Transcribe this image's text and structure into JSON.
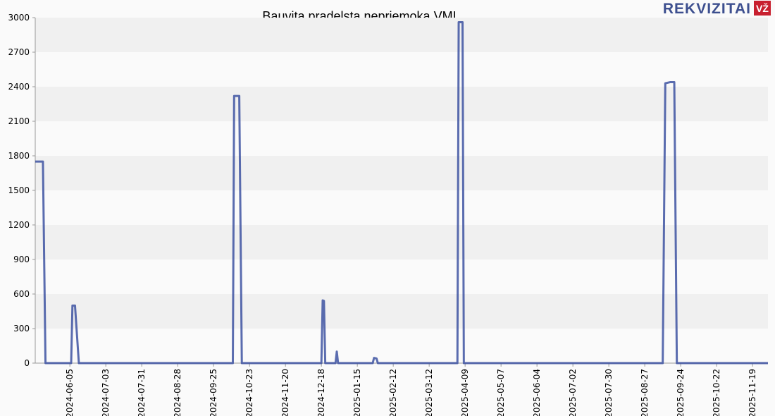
{
  "brand": {
    "name": "REKVIZITAI",
    "badge": "VŽ"
  },
  "chart_data": {
    "type": "line",
    "title": "Bauvita pradelsta nepriemoka VMI",
    "x": [
      "2024-05-09",
      "2024-05-15",
      "2024-05-17",
      "2024-06-06",
      "2024-06-07",
      "2024-06-09",
      "2024-06-12",
      "2024-10-10",
      "2024-10-11",
      "2024-10-15",
      "2024-10-17",
      "2024-12-18",
      "2024-12-19",
      "2024-12-20",
      "2024-12-21",
      "2024-12-29",
      "2024-12-30",
      "2024-12-31",
      "2025-01-27",
      "2025-01-28",
      "2025-01-30",
      "2025-01-31",
      "2025-04-03",
      "2025-04-04",
      "2025-04-07",
      "2025-04-08",
      "2025-09-10",
      "2025-09-12",
      "2025-09-16",
      "2025-09-19",
      "2025-09-21",
      "2025-12-01"
    ],
    "series": [
      {
        "name": "Bauvita",
        "color": "#3d52a1",
        "values": [
          1750,
          1750,
          0,
          0,
          500,
          500,
          0,
          0,
          2320,
          2320,
          0,
          0,
          545,
          540,
          0,
          0,
          100,
          0,
          0,
          45,
          40,
          0,
          0,
          2960,
          2960,
          0,
          0,
          2430,
          2440,
          2440,
          0,
          0
        ]
      }
    ],
    "xlim": [
      "2024-05-09",
      "2025-12-01"
    ],
    "xticks": [
      "2024-06-05",
      "2024-07-03",
      "2024-07-31",
      "2024-08-28",
      "2024-09-25",
      "2024-10-23",
      "2024-11-20",
      "2024-12-18",
      "2025-01-15",
      "2025-02-12",
      "2025-03-12",
      "2025-04-09",
      "2025-05-07",
      "2025-06-04",
      "2025-07-02",
      "2025-07-30",
      "2025-08-27",
      "2025-09-24",
      "2025-10-22",
      "2025-11-19"
    ],
    "ylim": [
      0,
      3000
    ],
    "yticks": [
      0,
      300,
      600,
      900,
      1200,
      1500,
      1800,
      2100,
      2400,
      2700,
      3000
    ],
    "grid": true
  }
}
